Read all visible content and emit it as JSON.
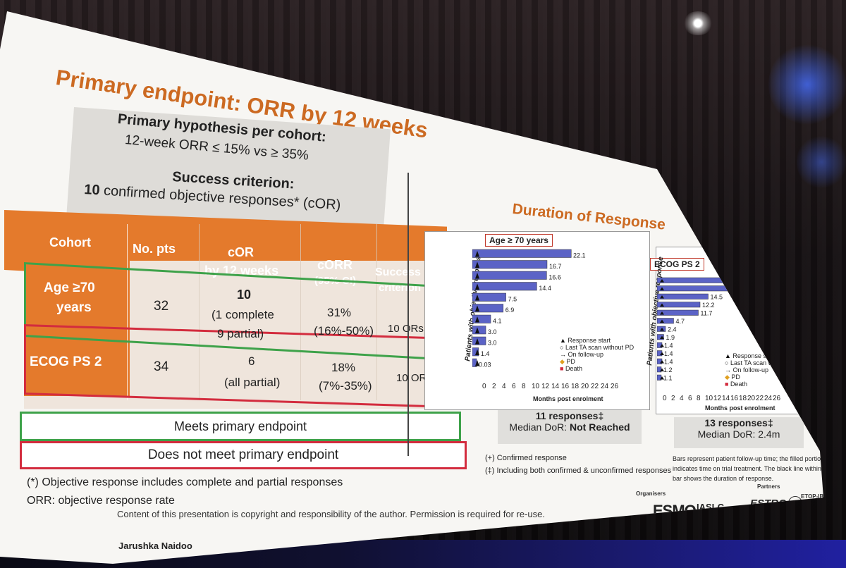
{
  "slide": {
    "title": "Primary endpoint: ORR by 12 weeks",
    "hypothesis_heading": "Primary hypothesis per cohort:",
    "hypothesis_text": "12-week ORR ≤ 15% vs ≥ 35%",
    "success_heading": "Success criterion:",
    "success_bold": "10",
    "success_text": " confirmed objective responses* (cOR)"
  },
  "table": {
    "headers": [
      "Cohort",
      "No. pts",
      "cOR",
      "by 12 weeks",
      "cORR",
      "(95% CI)",
      "Success",
      "criterion"
    ],
    "rows": [
      {
        "cohort_l1": "Age ≥70",
        "cohort_l2": "years",
        "pts": "32",
        "cor_main": "10",
        "cor_l2": "(1 complete",
        "cor_l3": "9 partial)",
        "corr": "31%",
        "ci": "(16%-50%)",
        "success": "10 ORs"
      },
      {
        "cohort_l1": "ECOG PS 2",
        "pts": "34",
        "cor_main": "6",
        "cor_l2": "(all partial)",
        "corr": "18%",
        "ci": "(7%-35%)",
        "success": "10 ORs"
      }
    ]
  },
  "legend": {
    "meets": "Meets primary endpoint",
    "not_meets": "Does not meet primary endpoint"
  },
  "footnotes": {
    "objective": "(*) Objective response includes complete and partial responses",
    "orr": "ORR: objective response rate",
    "copyright": "Content of this presentation is copyright and responsibility of the author. Permission is required for re-use.",
    "author": "Jarushka Naidoo"
  },
  "dor": {
    "title": "Duration of Response",
    "ylabel": "Patients with objective response",
    "xlabel": "Months post enrolment",
    "xticks": [
      "0",
      "2",
      "4",
      "6",
      "8",
      "10",
      "12",
      "14",
      "16",
      "18",
      "20",
      "22",
      "24",
      "26"
    ],
    "legend_items": [
      "Response start",
      "Last TA scan without PD",
      "On follow-up",
      "PD",
      "Death"
    ],
    "left": {
      "tag": "Age ≥ 70 years",
      "responses": "11 responses‡",
      "median_label": "Median DoR: ",
      "median_value": "Not Reached",
      "labels": [
        "22.1",
        "16.7",
        "16.6",
        "14.4",
        "7.5",
        "6.9",
        "4.1",
        "3.0",
        "3.0",
        "1.4",
        "0.03"
      ]
    },
    "right": {
      "tag": "ECOG PS 2",
      "responses": "13 responses‡",
      "median_label": "Median DoR: ",
      "median_value": "2.4m",
      "labels": [
        "",
        "",
        "14.5",
        "12.2",
        "11.7",
        "4.7",
        "2.4",
        "1.9",
        "1.4",
        "1.4",
        "1.4",
        "1.2",
        "1.1"
      ]
    },
    "note_confirmed": "(+) Confirmed response",
    "note_including": "(‡) Including both confirmed & unconfirmed responses",
    "note_bars_1": "Bars represent patient follow-up time; the filled portion",
    "note_bars_2": "indicates time on trial treatment. The black line within the",
    "note_bars_3": "bar shows the duration of response."
  },
  "logos": {
    "organisers": "Organisers",
    "partners": "Partners",
    "esmo": "ESMO",
    "iaslc": "IASLC",
    "estro": "ESTRO",
    "etop": "ETOP-IBCSG"
  },
  "colors": {
    "orange": "#e47a2c",
    "green": "#3ea24a",
    "red": "#d32c3e",
    "bar": "#5b63c6"
  }
}
